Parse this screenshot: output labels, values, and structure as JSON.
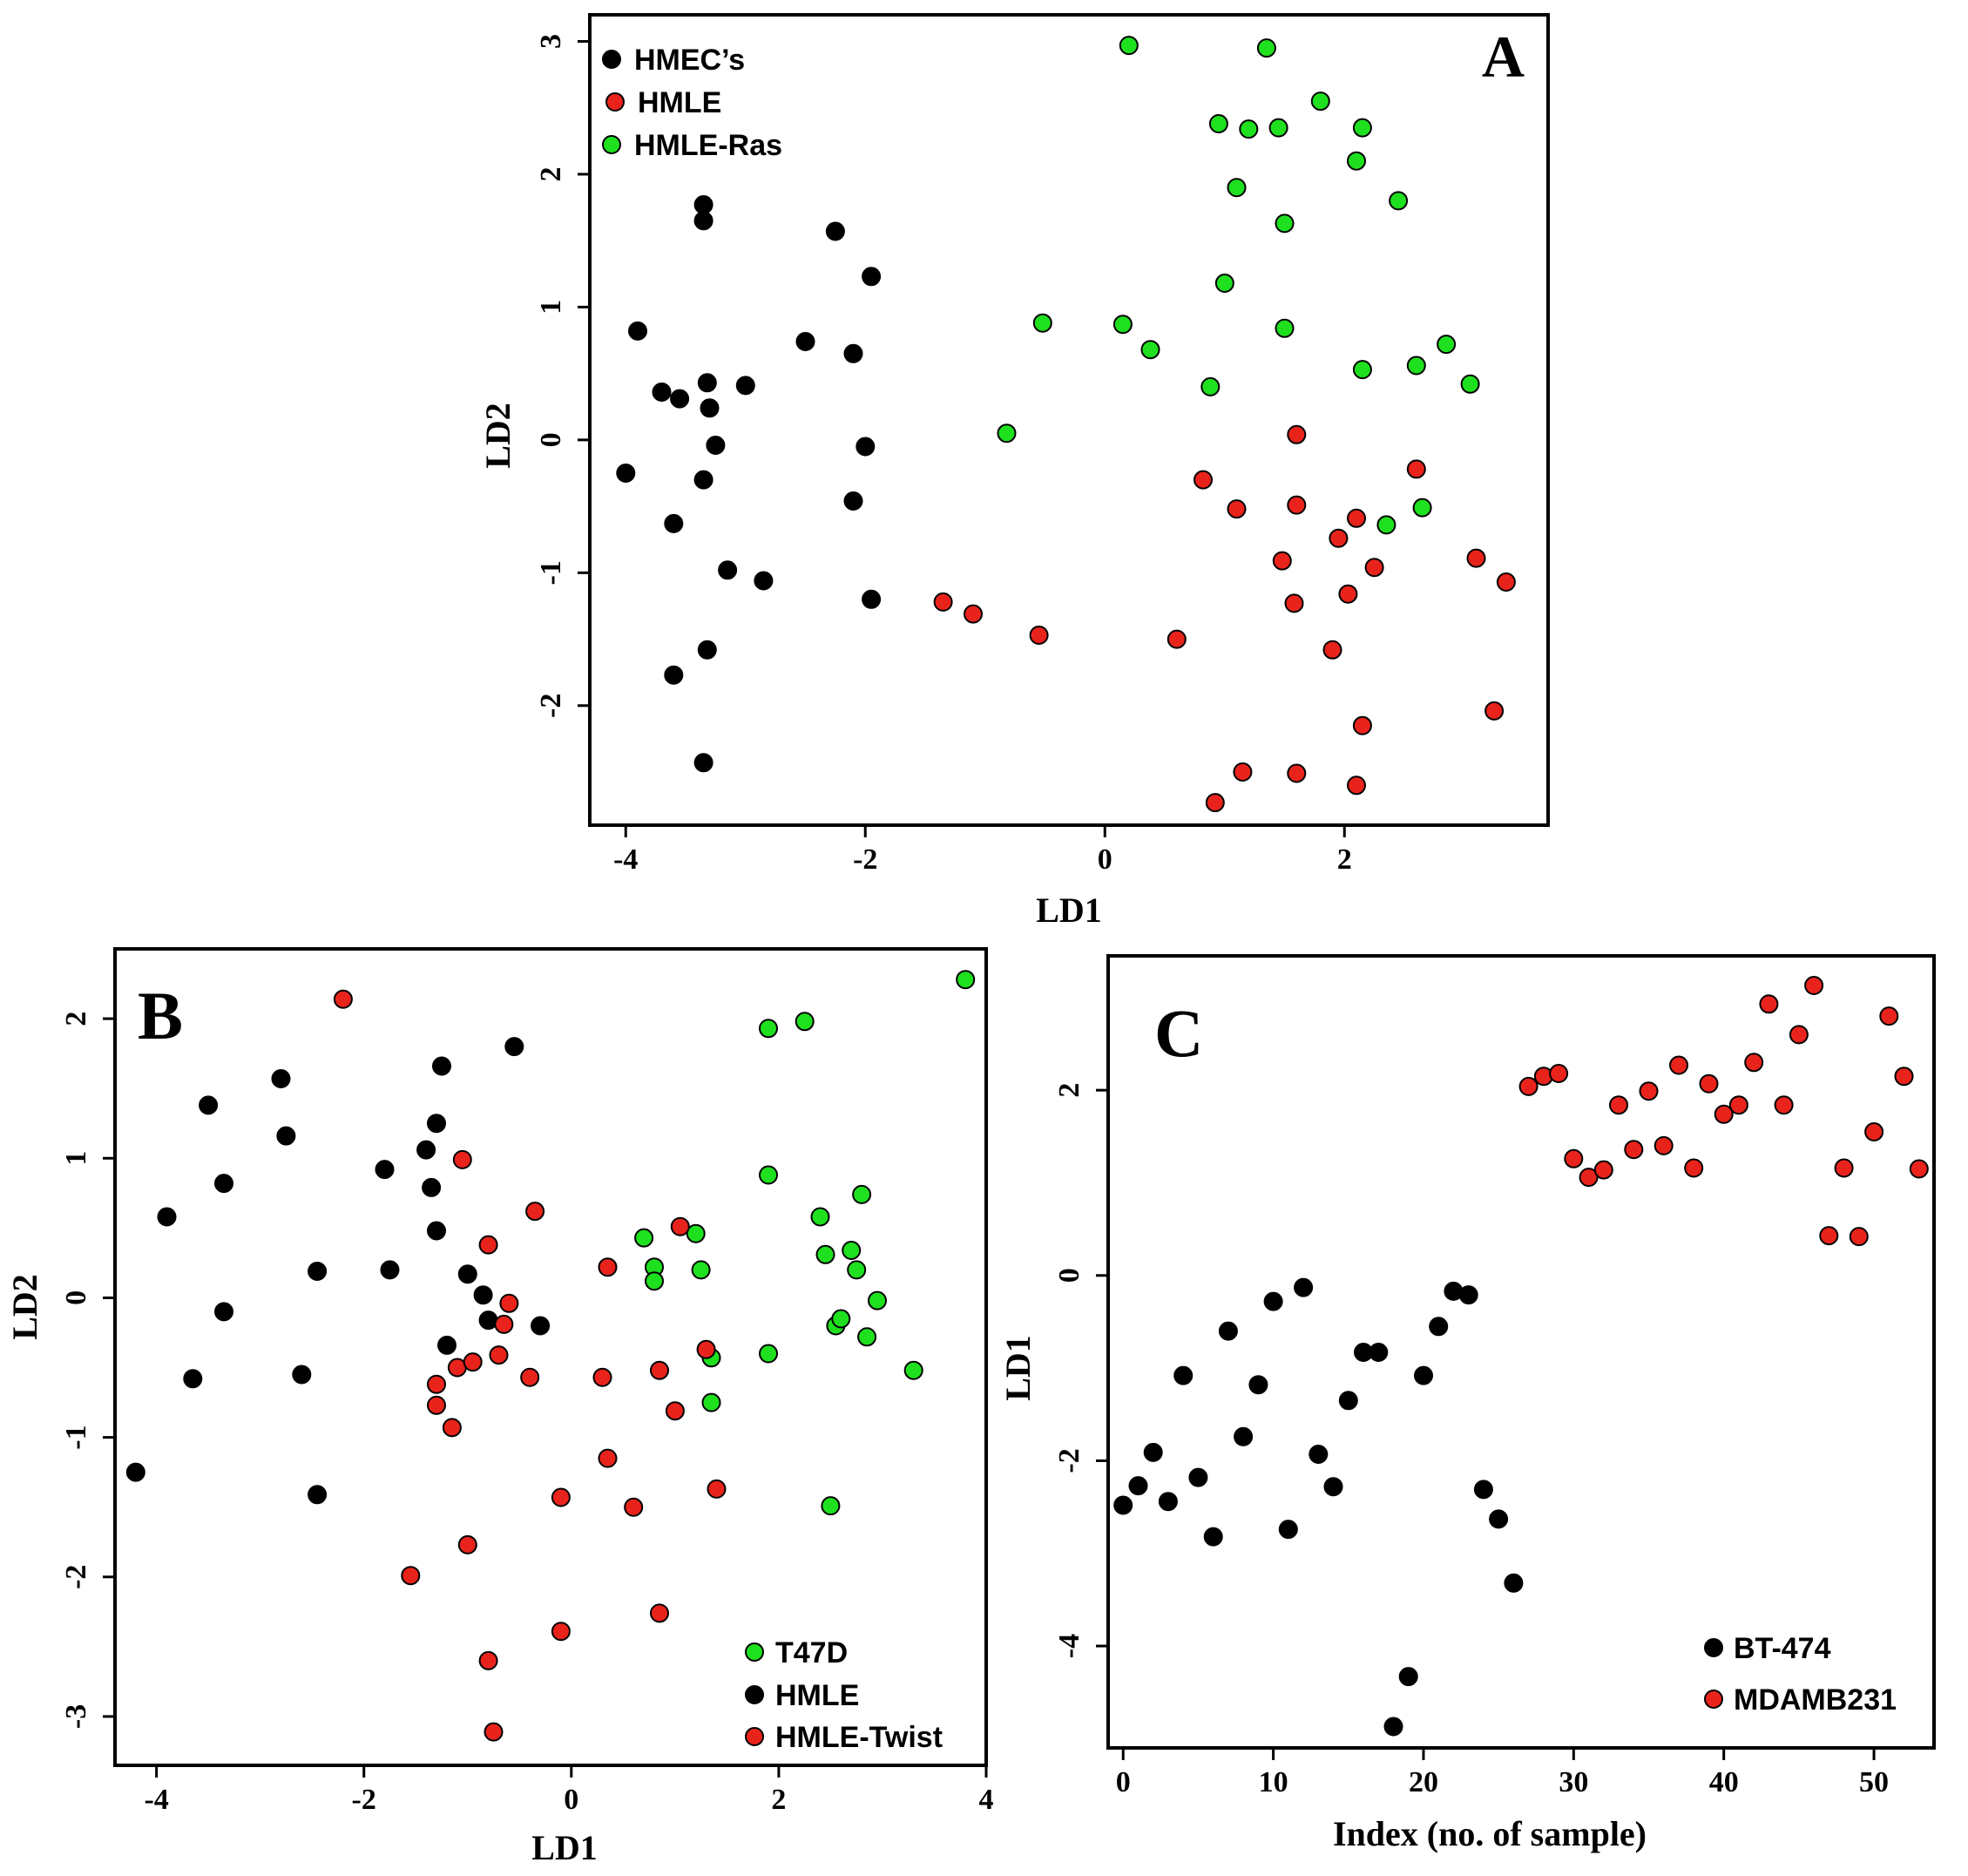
{
  "chart_data": [
    {
      "panel": "A",
      "type": "scatter",
      "xlabel": "LD1",
      "ylabel": "LD2",
      "xlim": [
        -4.3,
        3.7
      ],
      "ylim": [
        -2.9,
        3.2
      ],
      "xticks": [
        -4,
        -2,
        0,
        2
      ],
      "yticks": [
        -2,
        -1,
        0,
        1,
        2,
        3
      ],
      "legend_position": "top-left",
      "series": [
        {
          "name": "HMEC’s",
          "color": "#000000",
          "points": [
            [
              -4.0,
              -0.25
            ],
            [
              -3.9,
              0.82
            ],
            [
              -3.7,
              0.36
            ],
            [
              -3.6,
              -0.63
            ],
            [
              -3.6,
              -1.77
            ],
            [
              -3.55,
              0.31
            ],
            [
              -3.35,
              1.77
            ],
            [
              -3.35,
              1.65
            ],
            [
              -3.32,
              0.43
            ],
            [
              -3.3,
              0.24
            ],
            [
              -3.35,
              -0.3
            ],
            [
              -3.32,
              -1.58
            ],
            [
              -3.35,
              -2.43
            ],
            [
              -3.25,
              -0.04
            ],
            [
              -3.15,
              -0.98
            ],
            [
              -3.0,
              0.41
            ],
            [
              -2.85,
              -1.06
            ],
            [
              -2.5,
              0.74
            ],
            [
              -2.25,
              1.57
            ],
            [
              -2.1,
              0.65
            ],
            [
              -2.1,
              -0.46
            ],
            [
              -2.0,
              -0.05
            ],
            [
              -1.95,
              1.23
            ],
            [
              -1.95,
              -1.2
            ]
          ]
        },
        {
          "name": "HMLE",
          "color": "#e8231c",
          "points": [
            [
              -1.35,
              -1.22
            ],
            [
              -1.1,
              -1.31
            ],
            [
              -0.55,
              -1.47
            ],
            [
              0.6,
              -1.5
            ],
            [
              0.82,
              -0.3
            ],
            [
              0.92,
              -2.73
            ],
            [
              1.1,
              -0.52
            ],
            [
              1.15,
              -2.5
            ],
            [
              1.48,
              -0.91
            ],
            [
              1.6,
              0.04
            ],
            [
              1.6,
              -0.49
            ],
            [
              1.58,
              -1.23
            ],
            [
              1.6,
              -2.51
            ],
            [
              1.9,
              -1.58
            ],
            [
              1.95,
              -0.74
            ],
            [
              2.03,
              -1.16
            ],
            [
              2.1,
              -0.59
            ],
            [
              2.1,
              -2.6
            ],
            [
              2.15,
              -2.15
            ],
            [
              2.25,
              -0.96
            ],
            [
              2.6,
              -0.22
            ],
            [
              3.1,
              -0.89
            ],
            [
              3.25,
              -2.04
            ],
            [
              3.35,
              -1.07
            ]
          ]
        },
        {
          "name": "HMLE-Ras",
          "color": "#1fe01f",
          "points": [
            [
              -0.82,
              0.05
            ],
            [
              -0.52,
              0.88
            ],
            [
              0.15,
              0.87
            ],
            [
              0.2,
              2.97
            ],
            [
              0.38,
              0.68
            ],
            [
              0.88,
              0.4
            ],
            [
              0.95,
              2.38
            ],
            [
              1.0,
              1.18
            ],
            [
              1.1,
              1.9
            ],
            [
              1.2,
              2.34
            ],
            [
              1.35,
              2.95
            ],
            [
              1.45,
              2.35
            ],
            [
              1.5,
              1.63
            ],
            [
              1.5,
              0.84
            ],
            [
              1.8,
              2.55
            ],
            [
              2.1,
              2.1
            ],
            [
              2.15,
              2.35
            ],
            [
              2.15,
              0.53
            ],
            [
              2.35,
              -0.64
            ],
            [
              2.45,
              1.8
            ],
            [
              2.6,
              0.56
            ],
            [
              2.65,
              -0.51
            ],
            [
              2.85,
              0.72
            ],
            [
              3.05,
              0.42
            ]
          ]
        }
      ]
    },
    {
      "panel": "B",
      "type": "scatter",
      "xlabel": "LD1",
      "ylabel": "LD2",
      "xlim": [
        -4.4,
        4.0
      ],
      "ylim": [
        -3.35,
        2.5
      ],
      "xticks": [
        -4,
        -2,
        0,
        2,
        4
      ],
      "yticks": [
        -3,
        -2,
        -1,
        0,
        1,
        2
      ],
      "legend_position": "bottom-right",
      "series": [
        {
          "name": "T47D",
          "color": "#1fe01f",
          "points": [
            [
              0.7,
              0.43
            ],
            [
              0.8,
              0.22
            ],
            [
              0.8,
              0.12
            ],
            [
              1.2,
              0.46
            ],
            [
              1.25,
              0.2
            ],
            [
              1.35,
              -0.43
            ],
            [
              1.35,
              -0.75
            ],
            [
              1.9,
              1.93
            ],
            [
              1.9,
              0.88
            ],
            [
              1.9,
              -0.4
            ],
            [
              2.25,
              1.98
            ],
            [
              2.4,
              0.58
            ],
            [
              2.45,
              0.31
            ],
            [
              2.5,
              -1.49
            ],
            [
              2.55,
              -0.2
            ],
            [
              2.6,
              -0.15
            ],
            [
              2.7,
              0.34
            ],
            [
              2.75,
              0.2
            ],
            [
              2.8,
              0.74
            ],
            [
              2.85,
              -0.28
            ],
            [
              2.95,
              -0.02
            ],
            [
              3.3,
              -0.52
            ],
            [
              3.8,
              2.28
            ]
          ]
        },
        {
          "name": "HMLE",
          "color": "#000000",
          "points": [
            [
              -4.2,
              -1.25
            ],
            [
              -3.9,
              0.58
            ],
            [
              -3.65,
              -0.58
            ],
            [
              -3.5,
              1.38
            ],
            [
              -3.35,
              0.82
            ],
            [
              -3.35,
              -0.1
            ],
            [
              -2.8,
              1.57
            ],
            [
              -2.75,
              1.16
            ],
            [
              -2.6,
              -0.55
            ],
            [
              -2.45,
              0.19
            ],
            [
              -2.45,
              -1.41
            ],
            [
              -1.8,
              0.92
            ],
            [
              -1.75,
              0.2
            ],
            [
              -1.4,
              1.06
            ],
            [
              -1.35,
              0.79
            ],
            [
              -1.3,
              1.25
            ],
            [
              -1.3,
              0.48
            ],
            [
              -1.25,
              1.66
            ],
            [
              -1.2,
              -0.34
            ],
            [
              -1.0,
              0.17
            ],
            [
              -0.85,
              0.02
            ],
            [
              -0.8,
              -0.16
            ],
            [
              -0.55,
              1.8
            ],
            [
              -0.3,
              -0.2
            ]
          ]
        },
        {
          "name": "HMLE-Twist",
          "color": "#e8231c",
          "points": [
            [
              -2.2,
              2.14
            ],
            [
              -1.55,
              -1.99
            ],
            [
              -1.3,
              -0.62
            ],
            [
              -1.3,
              -0.77
            ],
            [
              -1.15,
              -0.93
            ],
            [
              -1.1,
              -0.5
            ],
            [
              -1.05,
              0.99
            ],
            [
              -1.0,
              -1.77
            ],
            [
              -0.95,
              -0.46
            ],
            [
              -0.8,
              0.38
            ],
            [
              -0.8,
              -2.6
            ],
            [
              -0.75,
              -3.11
            ],
            [
              -0.7,
              -0.41
            ],
            [
              -0.65,
              -0.19
            ],
            [
              -0.6,
              -0.04
            ],
            [
              -0.4,
              -0.57
            ],
            [
              -0.35,
              0.62
            ],
            [
              -0.1,
              -1.43
            ],
            [
              -0.1,
              -2.39
            ],
            [
              0.3,
              -0.57
            ],
            [
              0.35,
              0.22
            ],
            [
              0.35,
              -1.15
            ],
            [
              0.6,
              -1.5
            ],
            [
              0.85,
              -0.52
            ],
            [
              0.85,
              -2.26
            ],
            [
              1.0,
              -0.81
            ],
            [
              1.05,
              0.51
            ],
            [
              1.3,
              -0.37
            ],
            [
              1.4,
              -1.37
            ]
          ]
        }
      ]
    },
    {
      "panel": "C",
      "type": "scatter",
      "xlabel": "Index (no. of sample)",
      "ylabel": "LD1",
      "xlim": [
        -1,
        54
      ],
      "ylim": [
        -5.1,
        3.45
      ],
      "xticks": [
        0,
        10,
        20,
        30,
        40,
        50
      ],
      "yticks": [
        -4,
        -2,
        0,
        2
      ],
      "legend_position": "bottom-right",
      "series": [
        {
          "name": "BT-474",
          "color": "#000000",
          "points": [
            [
              0,
              -2.48
            ],
            [
              1,
              -2.27
            ],
            [
              2,
              -1.91
            ],
            [
              3,
              -2.44
            ],
            [
              4,
              -1.08
            ],
            [
              5,
              -2.18
            ],
            [
              6,
              -2.82
            ],
            [
              7,
              -0.6
            ],
            [
              8,
              -1.74
            ],
            [
              9,
              -1.18
            ],
            [
              10,
              -0.28
            ],
            [
              11,
              -2.74
            ],
            [
              12,
              -0.13
            ],
            [
              13,
              -1.93
            ],
            [
              14,
              -2.28
            ],
            [
              15,
              -1.35
            ],
            [
              16,
              -0.83
            ],
            [
              17,
              -0.83
            ],
            [
              18,
              -4.87
            ],
            [
              19,
              -4.33
            ],
            [
              20,
              -1.08
            ],
            [
              21,
              -0.55
            ],
            [
              22,
              -0.17
            ],
            [
              23,
              -0.21
            ],
            [
              24,
              -2.31
            ],
            [
              25,
              -2.63
            ],
            [
              26,
              -3.32
            ]
          ]
        },
        {
          "name": "MDAMB231",
          "color": "#e8231c",
          "points": [
            [
              27,
              2.04
            ],
            [
              28,
              2.15
            ],
            [
              29,
              2.18
            ],
            [
              30,
              1.26
            ],
            [
              31,
              1.06
            ],
            [
              32,
              1.14
            ],
            [
              33,
              1.84
            ],
            [
              34,
              1.36
            ],
            [
              35,
              1.99
            ],
            [
              36,
              1.4
            ],
            [
              37,
              2.27
            ],
            [
              38,
              1.16
            ],
            [
              39,
              2.07
            ],
            [
              40,
              1.74
            ],
            [
              41,
              1.84
            ],
            [
              42,
              2.3
            ],
            [
              43,
              2.93
            ],
            [
              44,
              1.84
            ],
            [
              45,
              2.6
            ],
            [
              46,
              3.13
            ],
            [
              47,
              0.43
            ],
            [
              48,
              1.16
            ],
            [
              49,
              0.42
            ],
            [
              50,
              1.55
            ],
            [
              51,
              2.8
            ],
            [
              52,
              2.15
            ],
            [
              53,
              1.15
            ]
          ]
        }
      ]
    }
  ]
}
